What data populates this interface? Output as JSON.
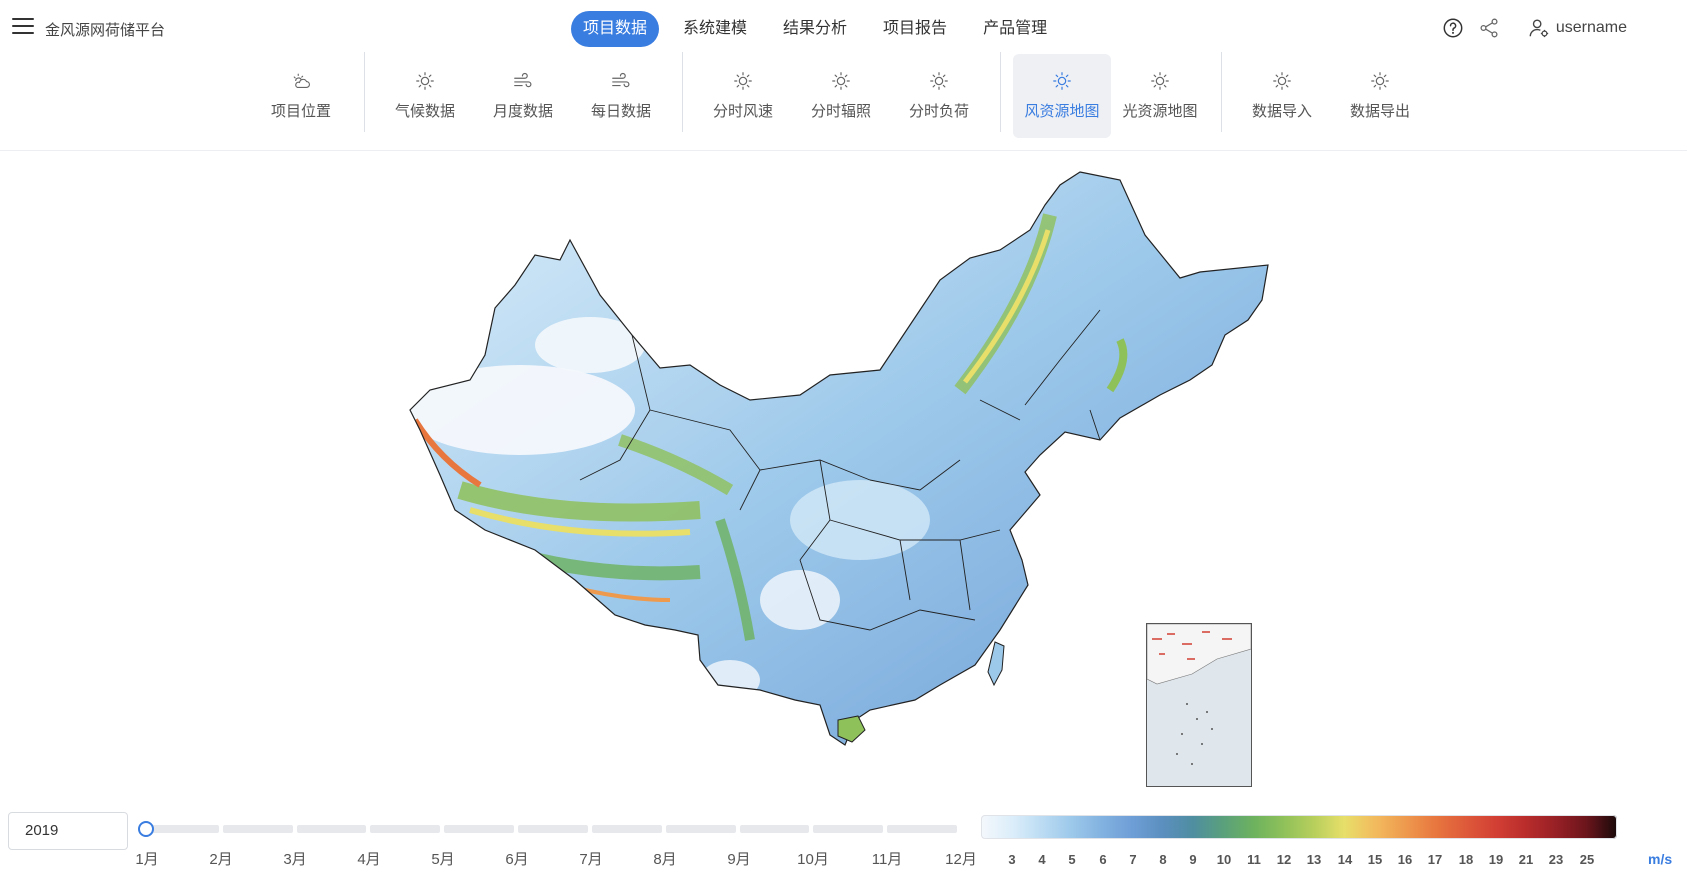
{
  "header": {
    "app_title": "金风源网荷储平台",
    "tabs": [
      {
        "label": "项目数据",
        "active": true
      },
      {
        "label": "系统建模",
        "active": false
      },
      {
        "label": "结果分析",
        "active": false
      },
      {
        "label": "项目报告",
        "active": false
      },
      {
        "label": "产品管理",
        "active": false
      }
    ],
    "username": "username"
  },
  "toolbar": {
    "items": [
      {
        "label": "项目位置",
        "icon": "cloud-sun-icon",
        "active": false
      },
      {
        "label": "气候数据",
        "icon": "sun-icon",
        "active": false
      },
      {
        "label": "月度数据",
        "icon": "wind-icon",
        "active": false
      },
      {
        "label": "每日数据",
        "icon": "wind-icon",
        "active": false
      },
      {
        "label": "分时风速",
        "icon": "sun-icon",
        "active": false
      },
      {
        "label": "分时辐照",
        "icon": "sun-icon",
        "active": false
      },
      {
        "label": "分时负荷",
        "icon": "sun-icon",
        "active": false
      },
      {
        "label": "风资源地图",
        "icon": "sun-icon",
        "active": true
      },
      {
        "label": "光资源地图",
        "icon": "sun-icon",
        "active": false
      },
      {
        "label": "数据导入",
        "icon": "sun-icon",
        "active": false
      },
      {
        "label": "数据导出",
        "icon": "sun-icon",
        "active": false
      }
    ]
  },
  "controls": {
    "year": "2019",
    "months": [
      "1月",
      "2月",
      "3月",
      "4月",
      "5月",
      "6月",
      "7月",
      "8月",
      "9月",
      "10月",
      "11月",
      "12月"
    ],
    "selected_month_index": 0
  },
  "legend": {
    "labels": [
      "3",
      "4",
      "5",
      "6",
      "7",
      "8",
      "9",
      "10",
      "11",
      "12",
      "13",
      "14",
      "15",
      "16",
      "17",
      "18",
      "19",
      "21",
      "23",
      "25"
    ],
    "unit": "m/s",
    "colors": [
      "#f4f8fc",
      "#dceefa",
      "#bcdcf3",
      "#9cc8ea",
      "#82b2e0",
      "#6e9ed6",
      "#5b8fbf",
      "#4f8ea1",
      "#5aa07c",
      "#6db25e",
      "#8fc15a",
      "#b8cf5c",
      "#e7df6a",
      "#f2bb5e",
      "#ee9a4e",
      "#e8773f",
      "#de5a3a",
      "#d23f34",
      "#b92c2c",
      "#962025",
      "#6b151c",
      "#1a0a0a"
    ]
  },
  "colors": {
    "accent": "#3a7de0"
  }
}
